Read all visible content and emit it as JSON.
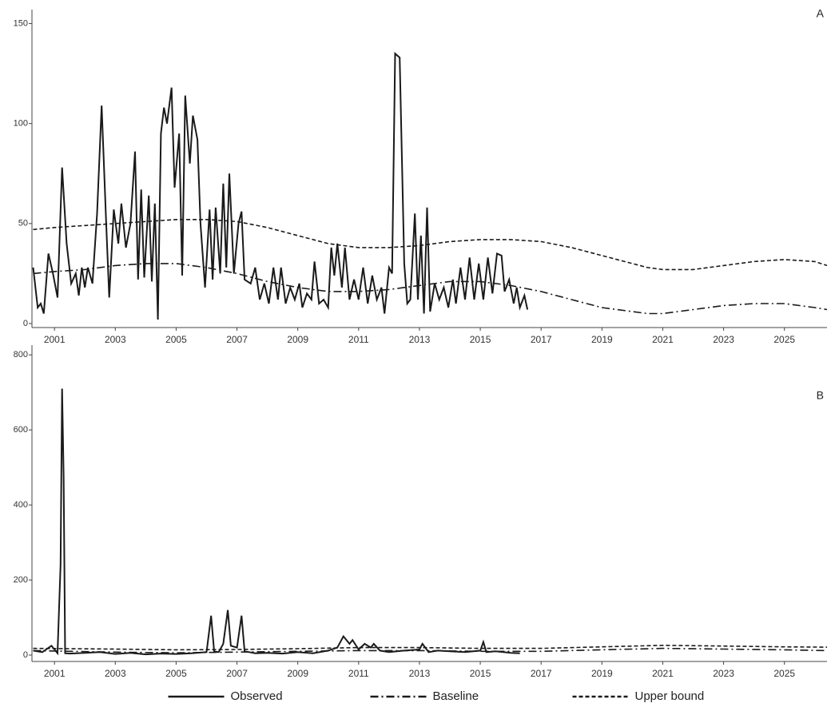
{
  "chart_data": [
    {
      "type": "line",
      "label": "A",
      "xlim": [
        2000.26,
        2026.4
      ],
      "ylim": [
        -2,
        157
      ],
      "xticks": [
        2001,
        2003,
        2005,
        2007,
        2009,
        2011,
        2013,
        2015,
        2017,
        2019,
        2021,
        2023,
        2025
      ],
      "yticks": [
        0,
        50,
        100,
        150
      ],
      "series": [
        {
          "color": "#1a1a1a",
          "dash": "solid",
          "x": [
            2000.3,
            2000.45,
            2000.55,
            2000.65,
            2000.8,
            2000.95,
            2001.1,
            2001.25,
            2001.4,
            2001.55,
            2001.7,
            2001.8,
            2001.9,
            2002.0,
            2002.1,
            2002.25,
            2002.4,
            2002.55,
            2002.7,
            2002.8,
            2002.95,
            2003.1,
            2003.2,
            2003.35,
            2003.5,
            2003.65,
            2003.75,
            2003.85,
            2003.95,
            2004.1,
            2004.2,
            2004.3,
            2004.4,
            2004.5,
            2004.6,
            2004.7,
            2004.85,
            2004.95,
            2005.1,
            2005.2,
            2005.3,
            2005.45,
            2005.55,
            2005.7,
            2005.8,
            2005.95,
            2006.1,
            2006.2,
            2006.3,
            2006.45,
            2006.55,
            2006.65,
            2006.75,
            2006.9,
            2007.05,
            2007.15,
            2007.25,
            2007.45,
            2007.6,
            2007.75,
            2007.9,
            2008.05,
            2008.2,
            2008.35,
            2008.45,
            2008.6,
            2008.75,
            2008.9,
            2009.05,
            2009.15,
            2009.3,
            2009.45,
            2009.55,
            2009.7,
            2009.85,
            2010.0,
            2010.1,
            2010.2,
            2010.3,
            2010.45,
            2010.55,
            2010.7,
            2010.85,
            2011.0,
            2011.15,
            2011.3,
            2011.45,
            2011.6,
            2011.75,
            2011.85,
            2012.0,
            2012.1,
            2012.2,
            2012.35,
            2012.5,
            2012.6,
            2012.7,
            2012.85,
            2012.95,
            2013.05,
            2013.15,
            2013.25,
            2013.35,
            2013.5,
            2013.65,
            2013.8,
            2013.95,
            2014.1,
            2014.2,
            2014.35,
            2014.5,
            2014.65,
            2014.8,
            2014.95,
            2015.1,
            2015.25,
            2015.4,
            2015.55,
            2015.7,
            2015.8,
            2015.95,
            2016.1,
            2016.2,
            2016.3,
            2016.45,
            2016.55
          ],
          "values": [
            28,
            8,
            10,
            5,
            35,
            25,
            13,
            78,
            40,
            20,
            25,
            14,
            28,
            18,
            28,
            20,
            55,
            109,
            50,
            13,
            57,
            40,
            60,
            38,
            50,
            86,
            22,
            67,
            23,
            64,
            21,
            60,
            2,
            95,
            108,
            100,
            118,
            68,
            95,
            24,
            114,
            80,
            104,
            92,
            50,
            18,
            57,
            22,
            58,
            25,
            70,
            28,
            75,
            25,
            50,
            56,
            22,
            20,
            28,
            12,
            20,
            10,
            28,
            12,
            28,
            10,
            18,
            12,
            20,
            8,
            15,
            12,
            31,
            10,
            12,
            8,
            38,
            24,
            40,
            18,
            38,
            12,
            22,
            12,
            28,
            10,
            24,
            12,
            18,
            5,
            28,
            25,
            135,
            133,
            30,
            10,
            12,
            55,
            12,
            44,
            5,
            58,
            6,
            20,
            12,
            18,
            8,
            22,
            10,
            28,
            12,
            33,
            12,
            30,
            12,
            33,
            15,
            35,
            34,
            16,
            22,
            10,
            18,
            8,
            14,
            7
          ]
        },
        {
          "color": "#1a1a1a",
          "dash": "dashdot",
          "x": [
            2000.3,
            2001,
            2002,
            2003,
            2004,
            2005,
            2006,
            2007,
            2008,
            2009,
            2010,
            2011,
            2012,
            2013,
            2014,
            2015,
            2016,
            2017,
            2018,
            2019,
            2020,
            2020.5,
            2021,
            2022,
            2023,
            2024,
            2025,
            2026,
            2026.4
          ],
          "values": [
            25,
            26,
            27,
            29,
            30,
            30,
            28,
            25,
            21,
            18,
            16,
            16,
            17,
            19,
            21,
            21,
            19,
            16,
            12,
            8,
            6,
            5,
            5,
            7,
            9,
            10,
            10,
            8,
            7
          ]
        },
        {
          "color": "#1a1a1a",
          "dash": "dashed",
          "x": [
            2000.3,
            2001,
            2002,
            2003,
            2004,
            2005,
            2006,
            2007,
            2008,
            2009,
            2010,
            2011,
            2012,
            2013,
            2014,
            2015,
            2016,
            2017,
            2018,
            2019,
            2020,
            2020.5,
            2021,
            2022,
            2023,
            2024,
            2025,
            2026,
            2026.4
          ],
          "values": [
            47,
            48,
            49,
            50,
            51,
            52,
            52,
            51,
            48,
            44,
            40,
            38,
            38,
            39,
            41,
            42,
            42,
            41,
            38,
            34,
            30,
            28,
            27,
            27,
            29,
            31,
            32,
            31,
            29
          ]
        }
      ]
    },
    {
      "type": "line",
      "label": "B",
      "xlim": [
        2000.26,
        2026.4
      ],
      "ylim": [
        -17,
        826
      ],
      "xticks": [
        2001,
        2003,
        2005,
        2007,
        2009,
        2011,
        2013,
        2015,
        2017,
        2019,
        2021,
        2023,
        2025
      ],
      "yticks": [
        0,
        200,
        400,
        600,
        800
      ],
      "legend": "bottom",
      "series": [
        {
          "name": "Observed",
          "color": "#1a1a1a",
          "dash": "solid",
          "x": [
            2000.3,
            2000.6,
            2000.9,
            2001.1,
            2001.2,
            2001.25,
            2001.3,
            2001.35,
            2001.5,
            2002,
            2002.5,
            2003,
            2003.5,
            2004,
            2004.5,
            2005,
            2005.5,
            2006,
            2006.15,
            2006.25,
            2006.4,
            2006.55,
            2006.7,
            2006.8,
            2007.0,
            2007.15,
            2007.25,
            2007.4,
            2007.6,
            2008,
            2008.5,
            2009,
            2009.5,
            2010,
            2010.3,
            2010.5,
            2010.7,
            2010.8,
            2011.0,
            2011.2,
            2011.4,
            2011.5,
            2011.7,
            2012,
            2012.5,
            2013,
            2013.1,
            2013.3,
            2013.6,
            2014,
            2014.5,
            2015,
            2015.1,
            2015.2,
            2015.5,
            2016,
            2016.3
          ],
          "values": [
            12,
            8,
            25,
            5,
            240,
            710,
            480,
            5,
            4,
            6,
            8,
            3,
            6,
            2,
            4,
            3,
            5,
            8,
            105,
            10,
            8,
            30,
            120,
            25,
            20,
            105,
            10,
            8,
            5,
            6,
            4,
            8,
            5,
            12,
            20,
            50,
            30,
            40,
            15,
            30,
            20,
            30,
            12,
            8,
            12,
            15,
            30,
            8,
            12,
            10,
            8,
            12,
            35,
            8,
            10,
            6,
            5
          ]
        },
        {
          "name": "Baseline",
          "color": "#1a1a1a",
          "dash": "dashdot",
          "x": [
            2000.3,
            2003,
            2005,
            2007,
            2009,
            2011,
            2013,
            2015,
            2017,
            2019,
            2021,
            2023,
            2025,
            2026.4
          ],
          "values": [
            12,
            8,
            6,
            8,
            10,
            12,
            12,
            10,
            10,
            14,
            18,
            16,
            14,
            12
          ]
        },
        {
          "name": "Upper bound",
          "color": "#1a1a1a",
          "dash": "dashed",
          "x": [
            2000.3,
            2003,
            2005,
            2007,
            2009,
            2011,
            2013,
            2015,
            2017,
            2019,
            2021,
            2023,
            2025,
            2026.4
          ],
          "values": [
            18,
            16,
            14,
            15,
            17,
            20,
            20,
            18,
            18,
            22,
            26,
            24,
            22,
            21
          ]
        }
      ]
    }
  ]
}
